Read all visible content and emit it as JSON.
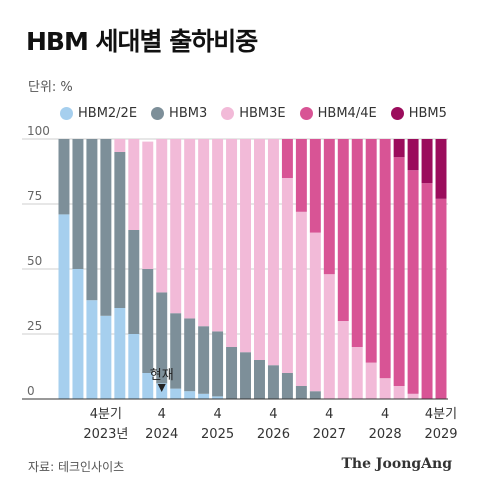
{
  "title": "HBM 세대별 출하비중",
  "unit": "단위: %",
  "source": "자료: 테크인사이츠",
  "brand": "The JoongAng",
  "marker_label": "현재",
  "chart_data": {
    "type": "bar",
    "stacked": true,
    "ylim": [
      0,
      100
    ],
    "yticks": [
      0,
      25,
      50,
      75,
      100
    ],
    "grid": true,
    "legend": "top",
    "categories": [
      "Q1 2023",
      "Q2 2023",
      "Q3 2023",
      "Q4 2023",
      "Q1 2024",
      "Q2 2024",
      "Q3 2024",
      "Q4 2024",
      "Q1 2025",
      "Q2 2025",
      "Q3 2025",
      "Q4 2025",
      "Q1 2026",
      "Q2 2026",
      "Q3 2026",
      "Q4 2026",
      "Q1 2027",
      "Q2 2027",
      "Q3 2027",
      "Q4 2027",
      "Q1 2028",
      "Q2 2028",
      "Q3 2028",
      "Q4 2028",
      "Q1 2029",
      "Q2 2029",
      "Q3 2029",
      "Q4 2029"
    ],
    "x_labels": [
      {
        "index": 3,
        "lines": [
          "4분기",
          "2023년"
        ]
      },
      {
        "index": 7,
        "lines": [
          "4",
          "2024"
        ]
      },
      {
        "index": 11,
        "lines": [
          "4",
          "2025"
        ]
      },
      {
        "index": 15,
        "lines": [
          "4",
          "2026"
        ]
      },
      {
        "index": 19,
        "lines": [
          "4",
          "2027"
        ]
      },
      {
        "index": 23,
        "lines": [
          "4",
          "2028"
        ]
      },
      {
        "index": 27,
        "lines": [
          "4분기",
          "2029"
        ]
      }
    ],
    "marker_index": 7,
    "series": [
      {
        "name": "HBM2/2E",
        "color": "#a6cfee",
        "values": [
          71,
          50,
          38,
          32,
          35,
          25,
          10,
          6,
          4,
          3,
          2,
          1,
          0,
          0,
          0,
          0,
          0,
          0,
          0,
          0,
          0,
          0,
          0,
          0,
          0,
          0,
          0,
          0
        ]
      },
      {
        "name": "HBM3",
        "color": "#7d8f99",
        "values": [
          29,
          50,
          62,
          68,
          60,
          40,
          40,
          35,
          29,
          28,
          26,
          25,
          20,
          18,
          15,
          13,
          10,
          5,
          3,
          0,
          0,
          0,
          0,
          0,
          0,
          0,
          0,
          0
        ]
      },
      {
        "name": "HBM3E",
        "color": "#f2bad8",
        "values": [
          0,
          0,
          0,
          0,
          5,
          35,
          49,
          59,
          67,
          69,
          72,
          74,
          80,
          82,
          85,
          87,
          75,
          67,
          61,
          48,
          30,
          20,
          14,
          8,
          5,
          2,
          0,
          0
        ]
      },
      {
        "name": "HBM4/4E",
        "color": "#d85495",
        "values": [
          0,
          0,
          0,
          0,
          0,
          0,
          0,
          0,
          0,
          0,
          0,
          0,
          0,
          0,
          0,
          0,
          15,
          28,
          36,
          52,
          70,
          80,
          86,
          92,
          88,
          86,
          83,
          77
        ]
      },
      {
        "name": "HBM5",
        "color": "#9b0c5c",
        "values": [
          0,
          0,
          0,
          0,
          0,
          0,
          0,
          0,
          0,
          0,
          0,
          0,
          0,
          0,
          0,
          0,
          0,
          0,
          0,
          0,
          0,
          0,
          0,
          0,
          7,
          12,
          17,
          23
        ]
      }
    ]
  }
}
